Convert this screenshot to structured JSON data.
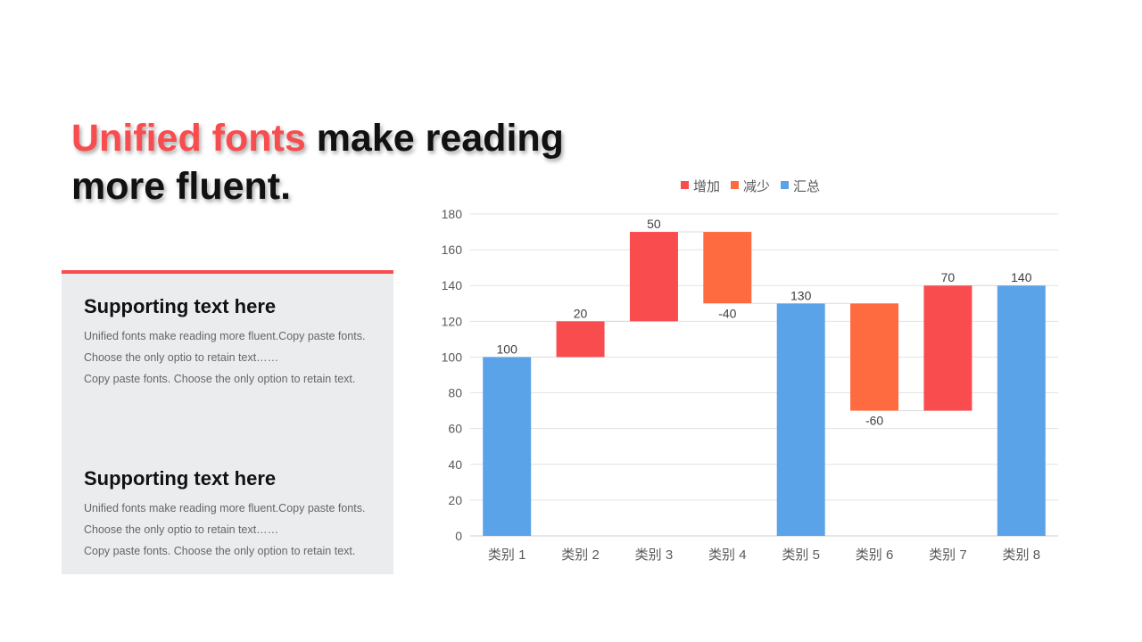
{
  "title": {
    "highlight": "Unified fonts",
    "rest_line1": " make reading",
    "line2": "more fluent."
  },
  "panel": {
    "accent_color": "#F94C4F",
    "blocks": [
      {
        "heading": "Supporting text here",
        "lines": [
          "Unified  fonts make reading more fluent.Copy paste fonts.",
          "Choose the only optio to retain text……",
          "Copy paste  fonts. Choose the only option to retain text."
        ]
      },
      {
        "heading": "Supporting text here",
        "lines": [
          "Unified  fonts make reading more fluent.Copy paste fonts.",
          "Choose the only optio to retain text……",
          "Copy paste  fonts. Choose the only option to retain text."
        ]
      }
    ]
  },
  "chart_data": {
    "type": "waterfall",
    "categories": [
      "类别 1",
      "类别 2",
      "类别 3",
      "类别 4",
      "类别 5",
      "类别 6",
      "类别 7",
      "类别 8"
    ],
    "values": [
      100,
      20,
      50,
      -40,
      130,
      -60,
      70,
      140
    ],
    "kinds": [
      "total",
      "increase",
      "increase",
      "decrease",
      "total",
      "decrease",
      "increase",
      "total"
    ],
    "legend": [
      {
        "key": "increase",
        "name": "增加",
        "color": "#F94C4F"
      },
      {
        "key": "decrease",
        "name": "减少",
        "color": "#FF6B40"
      },
      {
        "key": "total",
        "name": "汇总",
        "color": "#5BA3E8"
      }
    ],
    "legend_position": "top",
    "ylim": [
      0,
      180
    ],
    "yticks": [
      0,
      20,
      40,
      60,
      80,
      100,
      120,
      140,
      160,
      180
    ],
    "grid": true
  }
}
